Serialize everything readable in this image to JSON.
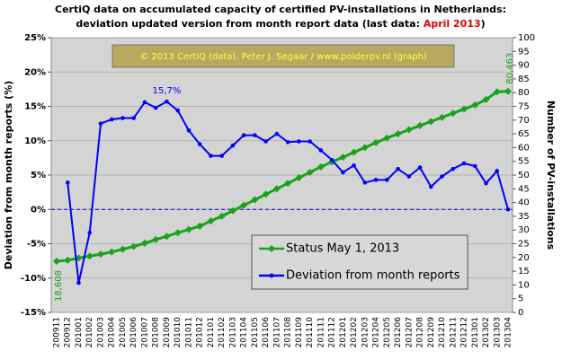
{
  "chart_data": {
    "type": "line",
    "title": [
      "CertiQ data on accumulated capacity of certified PV-installations in Netherlands:",
      "deviation updated version from month report data (last data: ",
      "April 2013",
      ")"
    ],
    "annotation": "© 2013 CertiQ (data). Peter J. Segaar / www.polderpv.nl (graph)",
    "ylabel": "Deviation from month reports (%)",
    "y2label": "Number of PV-installations",
    "categories": [
      "200911",
      "200912",
      "201001",
      "201002",
      "201003",
      "201004",
      "201005",
      "201006",
      "201007",
      "201008",
      "201009",
      "201010",
      "201011",
      "201012",
      "201101",
      "201102",
      "201103",
      "201104",
      "201105",
      "201106",
      "201107",
      "201108",
      "201109",
      "201110",
      "201111",
      "201112",
      "201201",
      "201202",
      "201203",
      "201204",
      "201205",
      "201206",
      "201207",
      "201208",
      "201209",
      "201210",
      "201211",
      "201212",
      "201301",
      "201302",
      "201303",
      "201304"
    ],
    "series": [
      {
        "name": "Status May 1, 2013",
        "color": "#1aa31a",
        "axis": "y2",
        "marker": "diamond",
        "values": [
          18.608,
          19,
          19.8,
          20.5,
          21.2,
          22,
          23,
          24,
          25.2,
          26.5,
          27.7,
          29,
          30.2,
          31.4,
          33.3,
          35,
          37,
          39,
          41,
          43,
          45,
          47,
          49,
          51,
          53,
          54.8,
          56.5,
          58.3,
          60,
          61.8,
          63.5,
          65,
          66.5,
          68,
          69.5,
          71,
          72.5,
          74,
          75.5,
          77.5,
          80.3,
          80.463
        ],
        "value_labels": [
          "18,608",
          null,
          null,
          null,
          null,
          null,
          null,
          null,
          null,
          null,
          null,
          null,
          null,
          null,
          null,
          null,
          null,
          null,
          null,
          null,
          null,
          null,
          null,
          null,
          null,
          null,
          null,
          null,
          null,
          null,
          null,
          null,
          null,
          null,
          null,
          null,
          null,
          null,
          null,
          null,
          null,
          "80,463"
        ]
      },
      {
        "name": "Deviation from month reports",
        "color": "#0000ff",
        "marker": "circle",
        "values": [
          null,
          3.9,
          -10.7,
          -3.4,
          12.5,
          13.1,
          13.3,
          13.3,
          15.6,
          14.8,
          15.7,
          14.4,
          11.5,
          9.5,
          7.8,
          7.8,
          9.3,
          10.8,
          10.8,
          9.9,
          11.0,
          9.8,
          9.9,
          9.9,
          8.6,
          7.2,
          5.4,
          6.4,
          3.9,
          4.3,
          4.3,
          5.9,
          4.8,
          6.1,
          3.3,
          4.8,
          5.9,
          6.7,
          6.3,
          3.8,
          5.6,
          0
        ],
        "value_labels": [
          null,
          null,
          null,
          null,
          null,
          null,
          null,
          null,
          null,
          null,
          "15,7%",
          null,
          null,
          null,
          null,
          null,
          null,
          null,
          null,
          null,
          null,
          null,
          null,
          null,
          null,
          null,
          null,
          null,
          null,
          null,
          null,
          null,
          null,
          null,
          null,
          null,
          null,
          null,
          null,
          null,
          null,
          null
        ]
      }
    ],
    "ylim": [
      -15,
      25
    ],
    "yticks": [
      {
        "value": -15,
        "label": "-15%"
      },
      {
        "value": -10,
        "label": "-10%"
      },
      {
        "value": -5,
        "label": "-5%"
      },
      {
        "value": 0,
        "label": "0%"
      },
      {
        "value": 5,
        "label": "5%"
      },
      {
        "value": 10,
        "label": "10%"
      },
      {
        "value": 15,
        "label": "15%"
      },
      {
        "value": 20,
        "label": "20%"
      },
      {
        "value": 25,
        "label": "25%"
      }
    ],
    "y2lim": [
      0,
      100
    ],
    "y2ticks": [
      0,
      5,
      10,
      15,
      20,
      25,
      30,
      35,
      40,
      45,
      50,
      55,
      60,
      65,
      70,
      75,
      80,
      85,
      90,
      95,
      100
    ],
    "grid": true,
    "legend": "lower right",
    "zero_line": true
  }
}
